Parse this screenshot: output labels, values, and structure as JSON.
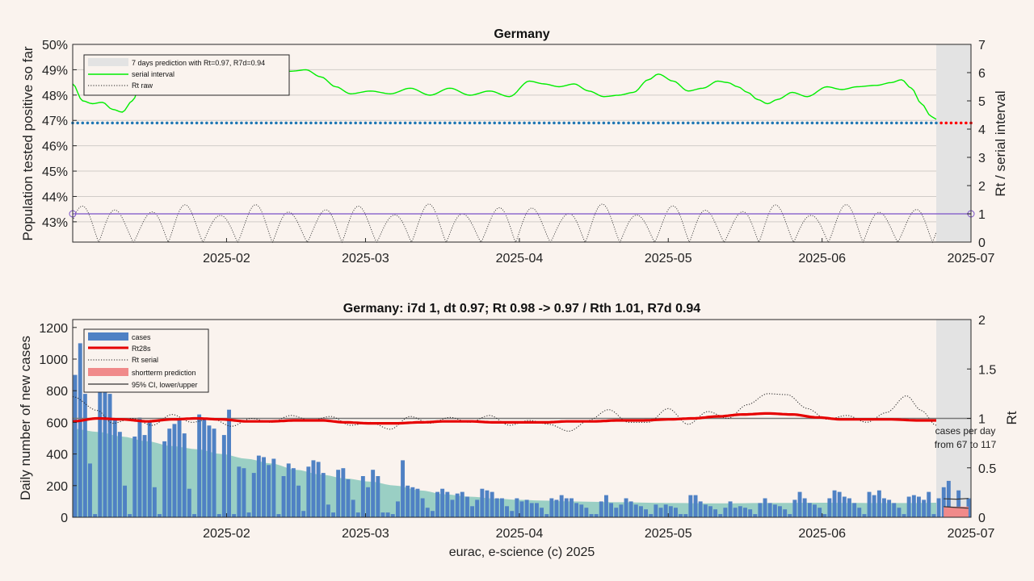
{
  "figure": {
    "footer": "eurac, e-science (c) 2025",
    "background": "#faf3ee"
  },
  "chart_data": [
    {
      "type": "line",
      "title": "Germany",
      "ylabel_left": "Population tested positive so far",
      "ylabel_right": "Rt / serial interval",
      "x_ticks": [
        "2025-02",
        "2025-03",
        "2025-04",
        "2025-05",
        "2025-06",
        "2025-07"
      ],
      "x_tick_days": [
        31,
        59,
        90,
        120,
        151,
        181
      ],
      "x_range_days": [
        0,
        181
      ],
      "ylim_left": [
        42.2,
        50
      ],
      "y_ticks_left": [
        "43%",
        "44%",
        "45%",
        "46%",
        "47%",
        "48%",
        "49%",
        "50%"
      ],
      "y_ticks_left_values": [
        43,
        44,
        45,
        46,
        47,
        48,
        49,
        50
      ],
      "ylim_right": [
        0,
        7
      ],
      "y_ticks_right": [
        "0",
        "1",
        "2",
        "3",
        "4",
        "5",
        "6",
        "7"
      ],
      "grid": true,
      "prediction_band_days": [
        174,
        181
      ],
      "legend": {
        "position": "top-left",
        "entries": [
          {
            "label": "7 days prediction with Rt=0.97, R7d=0.94",
            "style": "band",
            "color": "#e3e3e3"
          },
          {
            "label": "serial interval",
            "style": "line",
            "color": "#00ee00"
          },
          {
            "label": "Rt raw",
            "style": "dotted",
            "color": "#222222"
          }
        ]
      },
      "series": {
        "positive_share": {
          "color": "#1f77b4",
          "prediction_color": "#ff0000",
          "value": 46.9
        },
        "serial_interval_knots": [
          [
            0,
            5.6
          ],
          [
            2,
            5.0
          ],
          [
            4,
            4.9
          ],
          [
            6,
            4.95
          ],
          [
            8,
            4.7
          ],
          [
            10,
            4.6
          ],
          [
            12,
            5.0
          ],
          [
            14,
            5.7
          ],
          [
            16,
            6.05
          ],
          [
            20,
            6.1
          ],
          [
            25,
            6.1
          ],
          [
            30,
            6.0
          ],
          [
            35,
            5.9
          ],
          [
            40,
            6.0
          ],
          [
            44,
            6.05
          ],
          [
            47,
            6.1
          ],
          [
            50,
            5.85
          ],
          [
            53,
            5.5
          ],
          [
            56,
            5.25
          ],
          [
            60,
            5.35
          ],
          [
            64,
            5.25
          ],
          [
            68,
            5.45
          ],
          [
            72,
            5.2
          ],
          [
            76,
            5.45
          ],
          [
            80,
            5.2
          ],
          [
            84,
            5.35
          ],
          [
            88,
            5.15
          ],
          [
            92,
            5.7
          ],
          [
            95,
            5.6
          ],
          [
            98,
            5.5
          ],
          [
            101,
            5.6
          ],
          [
            104,
            5.35
          ],
          [
            107,
            5.15
          ],
          [
            110,
            5.2
          ],
          [
            113,
            5.3
          ],
          [
            116,
            5.75
          ],
          [
            118,
            5.95
          ],
          [
            121,
            5.7
          ],
          [
            124,
            5.35
          ],
          [
            127,
            5.45
          ],
          [
            130,
            5.7
          ],
          [
            132,
            5.65
          ],
          [
            134,
            5.5
          ],
          [
            136,
            5.3
          ],
          [
            138,
            5.05
          ],
          [
            140,
            4.9
          ],
          [
            142,
            5.05
          ],
          [
            145,
            5.3
          ],
          [
            148,
            5.15
          ],
          [
            152,
            5.5
          ],
          [
            155,
            5.4
          ],
          [
            158,
            5.5
          ],
          [
            162,
            5.55
          ],
          [
            165,
            5.65
          ],
          [
            167,
            5.75
          ],
          [
            169,
            5.45
          ],
          [
            171,
            4.9
          ],
          [
            173,
            4.45
          ],
          [
            174,
            4.35
          ]
        ],
        "rt_line": {
          "value": 1.0,
          "color": "#7b52c8"
        },
        "rt_raw": {
          "color": "#222222",
          "min": 0,
          "max": 1.35,
          "period_days": 7
        }
      }
    },
    {
      "type": "bar",
      "title": "Germany: i7d 1, dt 0.97; Rt 0.98 -> 0.97 / Rth 1.01, R7d 0.94",
      "ylabel_left": "Daily number of new cases",
      "ylabel_right": "Rt",
      "x_ticks": [
        "2025-02",
        "2025-03",
        "2025-04",
        "2025-05",
        "2025-06",
        "2025-07"
      ],
      "x_tick_days": [
        31,
        59,
        90,
        120,
        151,
        181
      ],
      "x_range_days": [
        0,
        181
      ],
      "ylim_left": [
        0,
        1250
      ],
      "y_ticks_left": [
        "0",
        "200",
        "400",
        "600",
        "800",
        "1000",
        "1200"
      ],
      "y_ticks_left_values": [
        0,
        200,
        400,
        600,
        800,
        1000,
        1200
      ],
      "ylim_right": [
        0,
        2
      ],
      "y_ticks_right": [
        "0",
        "0.5",
        "1",
        "1.5",
        "2"
      ],
      "y_ticks_right_values": [
        0,
        0.5,
        1,
        1.5,
        2
      ],
      "prediction_band_days": [
        174,
        181
      ],
      "annotation": [
        "cases per day",
        "from 67 to 117"
      ],
      "legend": {
        "position": "top-left",
        "entries": [
          {
            "label": "cases",
            "style": "bar",
            "color": "#4f81c4"
          },
          {
            "label": "Rt28s",
            "style": "thick-line",
            "color": "#e60000"
          },
          {
            "label": "Rt serial",
            "style": "dotted",
            "color": "#222222"
          },
          {
            "label": "shortterm prediction",
            "style": "band",
            "color": "#f08a8a"
          },
          {
            "label": "95% CI, lower/upper",
            "style": "line",
            "color": "#333333"
          }
        ]
      },
      "series": {
        "cases": {
          "color": "#4f81c4",
          "values": [
            900,
            1100,
            780,
            340,
            20,
            860,
            800,
            780,
            620,
            540,
            200,
            20,
            510,
            630,
            520,
            600,
            190,
            20,
            480,
            560,
            590,
            620,
            530,
            180,
            20,
            650,
            620,
            580,
            560,
            20,
            520,
            680,
            20,
            320,
            310,
            30,
            280,
            390,
            380,
            330,
            370,
            20,
            260,
            340,
            310,
            200,
            40,
            320,
            360,
            350,
            280,
            80,
            30,
            300,
            310,
            240,
            110,
            30,
            260,
            190,
            300,
            260,
            30,
            30,
            20,
            100,
            360,
            200,
            190,
            180,
            120,
            60,
            40,
            160,
            180,
            160,
            110,
            150,
            160,
            130,
            70,
            110,
            180,
            170,
            160,
            120,
            120,
            70,
            40,
            120,
            100,
            110,
            90,
            90,
            60,
            20,
            120,
            110,
            140,
            120,
            120,
            90,
            80,
            60,
            20,
            20,
            100,
            140,
            90,
            60,
            80,
            120,
            100,
            80,
            70,
            50,
            20,
            80,
            60,
            80,
            70,
            60,
            20,
            20,
            140,
            140,
            100,
            80,
            70,
            50,
            20,
            60,
            100,
            60,
            70,
            60,
            50,
            20,
            90,
            120,
            90,
            80,
            70,
            50,
            20,
            110,
            160,
            120,
            90,
            80,
            60,
            20,
            120,
            170,
            160,
            130,
            120,
            90,
            60,
            20,
            160,
            140,
            170,
            120,
            110,
            90,
            60,
            20,
            130,
            140,
            130,
            110,
            160,
            20,
            120,
            190,
            230,
            20,
            170,
            20,
            120
          ],
          "smoothed_knots": [
            [
              0,
              560
            ],
            [
              5,
              540
            ],
            [
              10,
              510
            ],
            [
              15,
              480
            ],
            [
              20,
              450
            ],
            [
              25,
              430
            ],
            [
              30,
              400
            ],
            [
              35,
              370
            ],
            [
              40,
              340
            ],
            [
              45,
              300
            ],
            [
              50,
              270
            ],
            [
              55,
              245
            ],
            [
              60,
              225
            ],
            [
              65,
              200
            ],
            [
              70,
              170
            ],
            [
              75,
              145
            ],
            [
              80,
              130
            ],
            [
              85,
              118
            ],
            [
              90,
              110
            ],
            [
              95,
              105
            ],
            [
              100,
              100
            ],
            [
              110,
              95
            ],
            [
              120,
              90
            ],
            [
              130,
              88
            ],
            [
              140,
              90
            ],
            [
              150,
              92
            ],
            [
              160,
              90
            ],
            [
              170,
              90
            ],
            [
              174,
              92
            ]
          ],
          "smoothed_color": "#5ab8a9"
        },
        "rt28s": {
          "color": "#e60000",
          "knots": [
            [
              0,
              0.97
            ],
            [
              5,
              1.0
            ],
            [
              10,
              0.99
            ],
            [
              15,
              0.97
            ],
            [
              20,
              0.99
            ],
            [
              25,
              1.0
            ],
            [
              30,
              0.99
            ],
            [
              35,
              0.97
            ],
            [
              40,
              0.97
            ],
            [
              45,
              0.98
            ],
            [
              50,
              0.98
            ],
            [
              55,
              0.96
            ],
            [
              60,
              0.95
            ],
            [
              65,
              0.95
            ],
            [
              70,
              0.96
            ],
            [
              75,
              0.97
            ],
            [
              80,
              0.97
            ],
            [
              85,
              0.96
            ],
            [
              90,
              0.96
            ],
            [
              95,
              0.96
            ],
            [
              100,
              0.97
            ],
            [
              105,
              0.97
            ],
            [
              110,
              0.98
            ],
            [
              115,
              0.98
            ],
            [
              120,
              0.99
            ],
            [
              125,
              1.0
            ],
            [
              130,
              1.02
            ],
            [
              135,
              1.04
            ],
            [
              140,
              1.05
            ],
            [
              145,
              1.04
            ],
            [
              150,
              1.01
            ],
            [
              155,
              0.99
            ],
            [
              160,
              0.99
            ],
            [
              165,
              0.99
            ],
            [
              170,
              0.98
            ],
            [
              174,
              0.98
            ]
          ]
        },
        "rt_serial": {
          "color": "#222222",
          "knots": [
            [
              0,
              1.22
            ],
            [
              5,
              1.08
            ],
            [
              8,
              0.95
            ],
            [
              12,
              1.0
            ],
            [
              16,
              0.93
            ],
            [
              20,
              1.04
            ],
            [
              24,
              0.96
            ],
            [
              28,
              1.0
            ],
            [
              32,
              0.92
            ],
            [
              36,
              1.0
            ],
            [
              40,
              0.96
            ],
            [
              44,
              1.03
            ],
            [
              48,
              0.98
            ],
            [
              52,
              1.02
            ],
            [
              56,
              0.93
            ],
            [
              60,
              0.96
            ],
            [
              64,
              0.89
            ],
            [
              68,
              1.02
            ],
            [
              72,
              0.95
            ],
            [
              76,
              1.01
            ],
            [
              80,
              0.96
            ],
            [
              84,
              1.03
            ],
            [
              88,
              0.93
            ],
            [
              92,
              0.98
            ],
            [
              96,
              0.94
            ],
            [
              100,
              0.87
            ],
            [
              104,
              0.98
            ],
            [
              108,
              1.09
            ],
            [
              112,
              0.96
            ],
            [
              116,
              0.96
            ],
            [
              120,
              1.1
            ],
            [
              124,
              0.94
            ],
            [
              128,
              1.07
            ],
            [
              132,
              1.0
            ],
            [
              136,
              1.14
            ],
            [
              140,
              1.25
            ],
            [
              144,
              1.24
            ],
            [
              148,
              1.1
            ],
            [
              152,
              0.99
            ],
            [
              156,
              1.03
            ],
            [
              160,
              0.96
            ],
            [
              164,
              1.06
            ],
            [
              168,
              1.23
            ],
            [
              171,
              1.08
            ],
            [
              174,
              0.93
            ]
          ]
        },
        "rt_one": {
          "value": 1.0,
          "color": "#777777"
        },
        "prediction": {
          "fill": "#f08a8a",
          "ci_color": "#333333",
          "lower": 67,
          "upper": 117
        }
      }
    }
  ]
}
